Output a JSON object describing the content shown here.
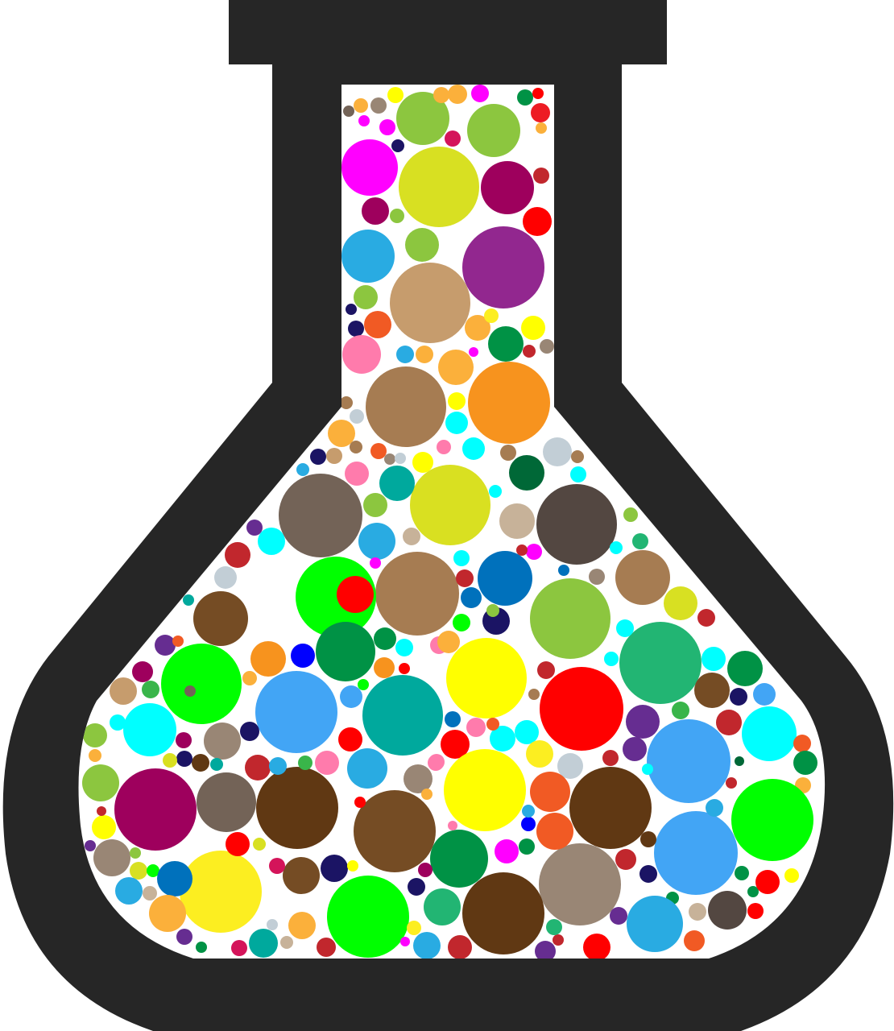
{
  "illustration": {
    "subject": "flask-icon",
    "colors": {
      "flask_body": "#262626",
      "flask_interior": "#ffffff",
      "bubble_palette": [
        "#8cc63f",
        "#d8e022",
        "#9e005d",
        "#ff00ff",
        "#29abe2",
        "#c69c6d",
        "#92278f",
        "#a67c52",
        "#f7931e",
        "#736357",
        "#d9e021",
        "#534741",
        "#00ff00",
        "#ff0000",
        "#00a99d",
        "#42a5f5",
        "#ffff00",
        "#009245",
        "#754c24",
        "#603813",
        "#ed1c24",
        "#ff7bac",
        "#22b573",
        "#f15a24",
        "#998675",
        "#fbb03b",
        "#0071bc",
        "#1b1464",
        "#662d91",
        "#c1272d",
        "#00ffff",
        "#d4145a",
        "#c7b299",
        "#0000ff",
        "#39b54a",
        "#fcee21",
        "#006837",
        "#c2ced6"
      ]
    }
  }
}
